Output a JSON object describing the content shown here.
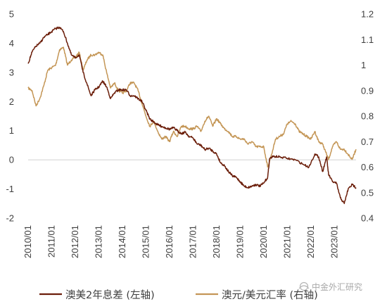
{
  "chart_data": {
    "type": "line",
    "title": "",
    "x_tick_labels": [
      "2010/01",
      "2011/01",
      "2012/01",
      "2013/01",
      "2014/01",
      "2015/01",
      "2016/01",
      "2017/01",
      "2018/01",
      "2019/01",
      "2020/01",
      "2021/01",
      "2022/01",
      "2023/01"
    ],
    "x_range": [
      "2010-01",
      "2023-12"
    ],
    "y_left": {
      "ticks": [
        "5",
        "4",
        "3",
        "2",
        "1",
        "0",
        "-1",
        "-2"
      ],
      "range": [
        -2,
        5
      ]
    },
    "y_right": {
      "ticks": [
        "1.2",
        "1.1",
        "1",
        "0.9",
        "0.8",
        "0.7",
        "0.6",
        "0.5",
        "0.4"
      ],
      "range": [
        0.4,
        1.2
      ]
    },
    "grid": false,
    "legend_position": "bottom",
    "series": [
      {
        "name": "澳美2年息差 (左轴)",
        "axis": "left",
        "color": "#6b1e0a",
        "points": [
          [
            "2010-01",
            3.3
          ],
          [
            "2010-03",
            3.7
          ],
          [
            "2010-05",
            3.9
          ],
          [
            "2010-07",
            4.0
          ],
          [
            "2010-09",
            4.2
          ],
          [
            "2010-11",
            4.3
          ],
          [
            "2011-01",
            4.4
          ],
          [
            "2011-03",
            4.5
          ],
          [
            "2011-05",
            4.55
          ],
          [
            "2011-07",
            4.4
          ],
          [
            "2011-09",
            4.0
          ],
          [
            "2011-11",
            3.6
          ],
          [
            "2012-01",
            3.5
          ],
          [
            "2012-03",
            3.6
          ],
          [
            "2012-05",
            3.0
          ],
          [
            "2012-07",
            2.6
          ],
          [
            "2012-09",
            2.2
          ],
          [
            "2012-11",
            2.4
          ],
          [
            "2013-01",
            2.5
          ],
          [
            "2013-03",
            2.7
          ],
          [
            "2013-05",
            2.5
          ],
          [
            "2013-07",
            2.1
          ],
          [
            "2013-09",
            2.3
          ],
          [
            "2013-11",
            2.4
          ],
          [
            "2014-01",
            2.4
          ],
          [
            "2014-03",
            2.4
          ],
          [
            "2014-05",
            2.2
          ],
          [
            "2014-07",
            2.2
          ],
          [
            "2014-09",
            2.1
          ],
          [
            "2014-11",
            2.0
          ],
          [
            "2015-01",
            1.7
          ],
          [
            "2015-03",
            1.4
          ],
          [
            "2015-05",
            1.3
          ],
          [
            "2015-07",
            1.2
          ],
          [
            "2015-09",
            1.15
          ],
          [
            "2015-11",
            1.1
          ],
          [
            "2016-01",
            1.05
          ],
          [
            "2016-03",
            1.1
          ],
          [
            "2016-05",
            1.0
          ],
          [
            "2016-07",
            0.9
          ],
          [
            "2016-09",
            0.95
          ],
          [
            "2016-11",
            0.8
          ],
          [
            "2017-01",
            0.75
          ],
          [
            "2017-03",
            0.55
          ],
          [
            "2017-05",
            0.5
          ],
          [
            "2017-07",
            0.35
          ],
          [
            "2017-09",
            0.4
          ],
          [
            "2017-11",
            0.3
          ],
          [
            "2018-01",
            0.2
          ],
          [
            "2018-03",
            -0.1
          ],
          [
            "2018-05",
            -0.2
          ],
          [
            "2018-07",
            -0.4
          ],
          [
            "2018-09",
            -0.55
          ],
          [
            "2018-11",
            -0.6
          ],
          [
            "2019-01",
            -0.75
          ],
          [
            "2019-03",
            -0.9
          ],
          [
            "2019-05",
            -0.95
          ],
          [
            "2019-07",
            -0.9
          ],
          [
            "2019-09",
            -0.85
          ],
          [
            "2019-11",
            -0.9
          ],
          [
            "2020-01",
            -0.8
          ],
          [
            "2020-03",
            -0.6
          ],
          [
            "2020-04",
            0.05
          ],
          [
            "2020-06",
            0.12
          ],
          [
            "2020-09",
            0.1
          ],
          [
            "2021-01",
            0.05
          ],
          [
            "2021-05",
            0.0
          ],
          [
            "2021-09",
            -0.15
          ],
          [
            "2021-12",
            -0.25
          ],
          [
            "2022-03",
            0.2
          ],
          [
            "2022-05",
            0.1
          ],
          [
            "2022-07",
            -0.4
          ],
          [
            "2022-09",
            0.1
          ],
          [
            "2022-10",
            -0.5
          ],
          [
            "2022-12",
            -0.75
          ],
          [
            "2023-02",
            -0.8
          ],
          [
            "2023-04",
            -1.3
          ],
          [
            "2023-06",
            -1.5
          ],
          [
            "2023-08",
            -1.0
          ],
          [
            "2023-10",
            -0.85
          ],
          [
            "2023-12",
            -0.95
          ]
        ]
      },
      {
        "name": "澳元/美元汇率 (右轴)",
        "axis": "right",
        "color": "#c49656",
        "points": [
          [
            "2010-01",
            0.91
          ],
          [
            "2010-03",
            0.9
          ],
          [
            "2010-05",
            0.84
          ],
          [
            "2010-07",
            0.87
          ],
          [
            "2010-09",
            0.92
          ],
          [
            "2010-11",
            0.98
          ],
          [
            "2011-01",
            0.99
          ],
          [
            "2011-03",
            1.0
          ],
          [
            "2011-05",
            1.06
          ],
          [
            "2011-07",
            1.07
          ],
          [
            "2011-09",
            1.0
          ],
          [
            "2011-11",
            1.02
          ],
          [
            "2012-01",
            1.03
          ],
          [
            "2012-03",
            1.05
          ],
          [
            "2012-05",
            0.98
          ],
          [
            "2012-07",
            1.02
          ],
          [
            "2012-09",
            1.04
          ],
          [
            "2012-11",
            1.04
          ],
          [
            "2013-01",
            1.05
          ],
          [
            "2013-03",
            1.04
          ],
          [
            "2013-05",
            0.97
          ],
          [
            "2013-07",
            0.91
          ],
          [
            "2013-09",
            0.93
          ],
          [
            "2013-11",
            0.9
          ],
          [
            "2014-01",
            0.89
          ],
          [
            "2014-03",
            0.9
          ],
          [
            "2014-05",
            0.93
          ],
          [
            "2014-07",
            0.93
          ],
          [
            "2014-09",
            0.9
          ],
          [
            "2014-11",
            0.85
          ],
          [
            "2015-01",
            0.8
          ],
          [
            "2015-03",
            0.76
          ],
          [
            "2015-05",
            0.78
          ],
          [
            "2015-07",
            0.74
          ],
          [
            "2015-09",
            0.71
          ],
          [
            "2015-11",
            0.72
          ],
          [
            "2016-01",
            0.7
          ],
          [
            "2016-03",
            0.74
          ],
          [
            "2016-05",
            0.72
          ],
          [
            "2016-07",
            0.76
          ],
          [
            "2016-09",
            0.76
          ],
          [
            "2016-11",
            0.75
          ],
          [
            "2017-01",
            0.75
          ],
          [
            "2017-03",
            0.76
          ],
          [
            "2017-05",
            0.74
          ],
          [
            "2017-07",
            0.78
          ],
          [
            "2017-09",
            0.8
          ],
          [
            "2017-11",
            0.76
          ],
          [
            "2018-01",
            0.79
          ],
          [
            "2018-03",
            0.77
          ],
          [
            "2018-05",
            0.75
          ],
          [
            "2018-07",
            0.74
          ],
          [
            "2018-09",
            0.72
          ],
          [
            "2018-11",
            0.72
          ],
          [
            "2019-01",
            0.71
          ],
          [
            "2019-03",
            0.71
          ],
          [
            "2019-05",
            0.69
          ],
          [
            "2019-07",
            0.7
          ],
          [
            "2019-09",
            0.68
          ],
          [
            "2019-11",
            0.68
          ],
          [
            "2020-01",
            0.68
          ],
          [
            "2020-03",
            0.6
          ],
          [
            "2020-05",
            0.65
          ],
          [
            "2020-07",
            0.71
          ],
          [
            "2020-09",
            0.72
          ],
          [
            "2020-11",
            0.73
          ],
          [
            "2021-01",
            0.77
          ],
          [
            "2021-03",
            0.78
          ],
          [
            "2021-05",
            0.77
          ],
          [
            "2021-07",
            0.74
          ],
          [
            "2021-09",
            0.73
          ],
          [
            "2021-11",
            0.72
          ],
          [
            "2022-01",
            0.71
          ],
          [
            "2022-03",
            0.74
          ],
          [
            "2022-05",
            0.7
          ],
          [
            "2022-07",
            0.69
          ],
          [
            "2022-09",
            0.65
          ],
          [
            "2022-10",
            0.63
          ],
          [
            "2022-12",
            0.68
          ],
          [
            "2023-02",
            0.7
          ],
          [
            "2023-04",
            0.67
          ],
          [
            "2023-06",
            0.67
          ],
          [
            "2023-08",
            0.65
          ],
          [
            "2023-10",
            0.63
          ],
          [
            "2023-12",
            0.67
          ]
        ]
      }
    ]
  },
  "watermark": {
    "text": "中金外汇研究"
  }
}
